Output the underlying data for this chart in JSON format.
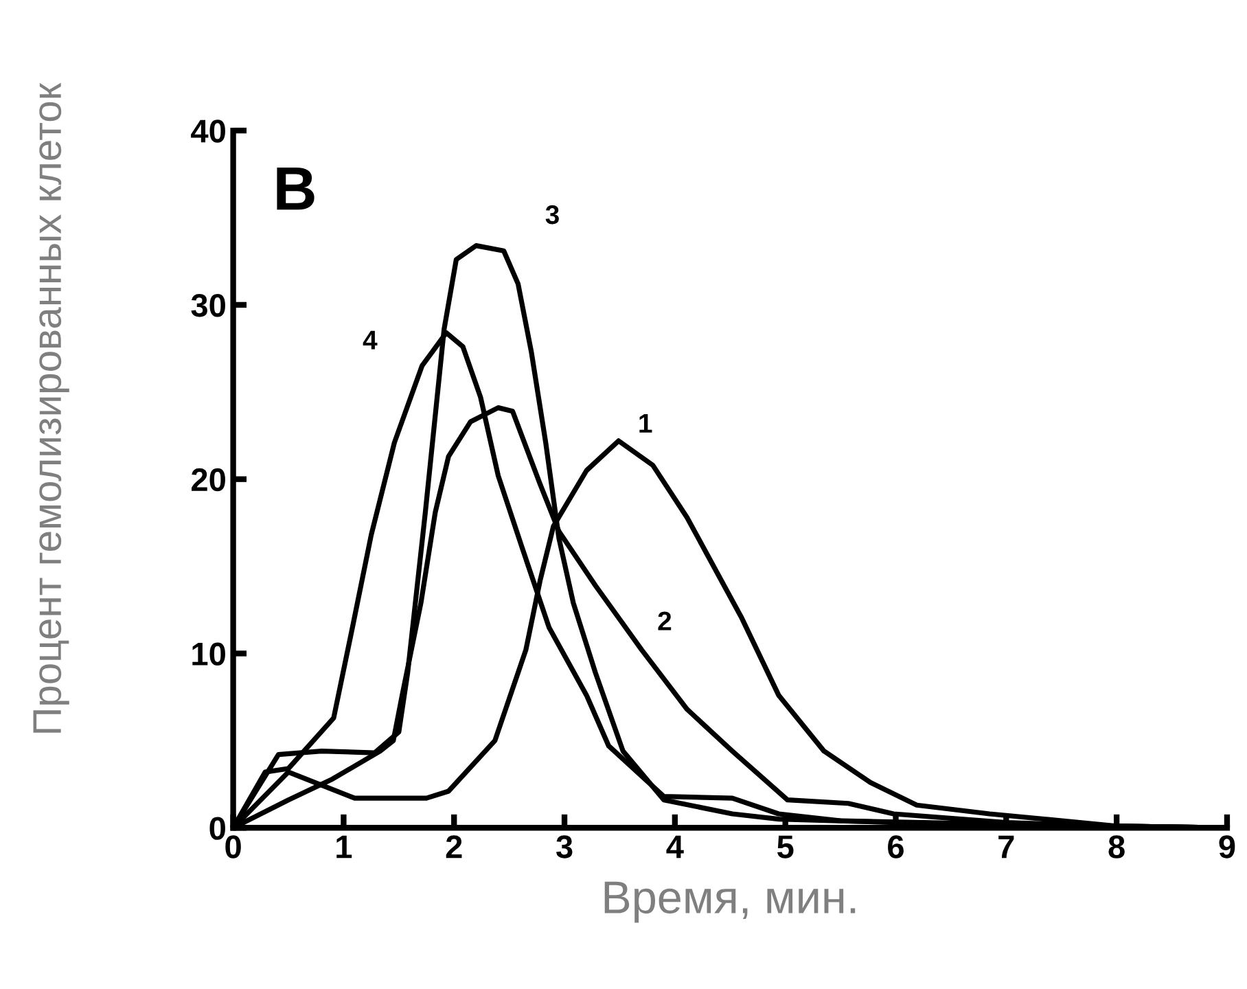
{
  "chart_data": {
    "type": "line",
    "title": "В",
    "xlabel": "Время, мин.",
    "ylabel": "Процент гемолизированных клеток",
    "xlim": [
      0,
      9
    ],
    "ylim": [
      0,
      40
    ],
    "xticks": [
      0,
      1,
      2,
      3,
      4,
      5,
      6,
      7,
      8,
      9
    ],
    "yticks": [
      0,
      10,
      20,
      30,
      40
    ],
    "grid": false,
    "legend": false,
    "marker": "none",
    "line_style": "solid",
    "series": [
      {
        "name": "1",
        "color": "#000000",
        "x": [
          0,
          0.5,
          1.1,
          1.75,
          1.95,
          2.37,
          2.65,
          2.78,
          2.9,
          3.2,
          3.49,
          3.8,
          4.11,
          4.6,
          4.94,
          5.35,
          5.77,
          6.19,
          6.85,
          8,
          9
        ],
        "values": [
          0,
          3.2,
          1.7,
          1.7,
          2.1,
          5,
          10.2,
          14.2,
          17.3,
          20.5,
          22.2,
          20.8,
          17.8,
          12.1,
          7.6,
          4.4,
          2.6,
          1.3,
          0.8,
          0.1,
          0
        ]
      },
      {
        "name": "2",
        "color": "#000000",
        "x": [
          0,
          0.5,
          0.9,
          1.33,
          1.45,
          1.53,
          1.7,
          1.83,
          1.95,
          2.15,
          2.4,
          2.53,
          2.78,
          2.95,
          3.28,
          3.7,
          4.11,
          4.52,
          5.02,
          5.57,
          5.98,
          7,
          8,
          9
        ],
        "values": [
          0,
          1.6,
          2.8,
          4.4,
          5,
          7.6,
          12.9,
          18.1,
          21.3,
          23.3,
          24.1,
          23.9,
          19.7,
          17,
          13.9,
          10.2,
          6.8,
          4.4,
          1.6,
          1.4,
          0.8,
          0.3,
          0.1,
          0
        ]
      },
      {
        "name": "3",
        "color": "#000000",
        "x": [
          0,
          0.41,
          0.8,
          1.28,
          1.5,
          1.58,
          1.74,
          1.91,
          2.02,
          2.2,
          2.45,
          2.58,
          2.7,
          2.83,
          2.95,
          3.08,
          3.28,
          3.53,
          3.9,
          4.52,
          4.94,
          6,
          7,
          8,
          9
        ],
        "values": [
          0,
          4.2,
          4.4,
          4.3,
          5.5,
          8.9,
          18.1,
          28.6,
          32.6,
          33.4,
          33.1,
          31.2,
          27.3,
          22.1,
          16.6,
          12.9,
          8.9,
          4.4,
          1.6,
          0.8,
          0.5,
          0.3,
          0.2,
          0.1,
          0
        ]
      },
      {
        "name": "4",
        "color": "#000000",
        "x": [
          0,
          0.29,
          0.5,
          0.91,
          1.08,
          1.25,
          1.46,
          1.71,
          1.93,
          2.08,
          2.24,
          2.4,
          2.62,
          2.86,
          3.2,
          3.4,
          3.9,
          4.52,
          4.94,
          5.5,
          7,
          8,
          9
        ],
        "values": [
          0,
          3.2,
          3.4,
          6.3,
          11.5,
          16.8,
          22.1,
          26.5,
          28.4,
          27.6,
          24.7,
          20.2,
          16,
          11.5,
          7.6,
          4.7,
          1.8,
          1.7,
          0.8,
          0.4,
          0.2,
          0.1,
          0
        ]
      }
    ]
  }
}
